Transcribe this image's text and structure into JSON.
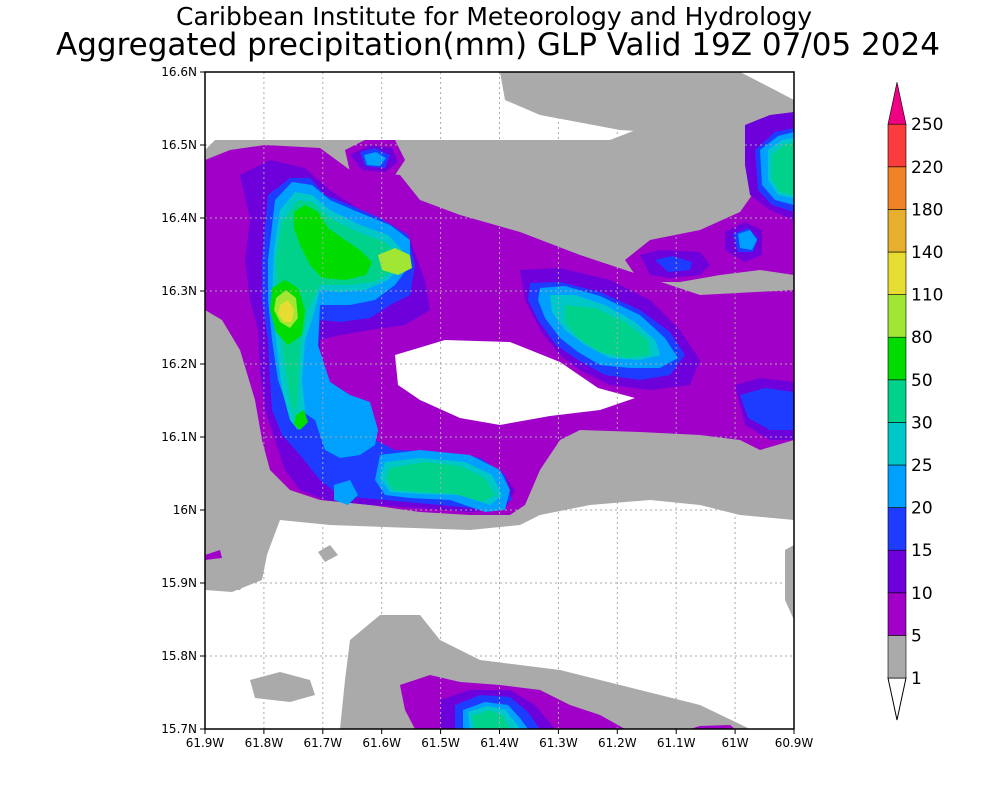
{
  "header": {
    "title": "Caribbean Institute for Meteorology and Hydrology",
    "subtitle": "Aggregated precipitation(mm) GLP Valid 19Z 07/05 2024"
  },
  "map": {
    "x_ticks": [
      "61.9W",
      "61.8W",
      "61.7W",
      "61.6W",
      "61.5W",
      "61.4W",
      "61.3W",
      "61.2W",
      "61.1W",
      "61W",
      "60.9W"
    ],
    "y_ticks": [
      "16.6N",
      "16.5N",
      "16.4N",
      "16.3N",
      "16.2N",
      "16.1N",
      "16N",
      "15.9N",
      "15.8N",
      "15.7N"
    ],
    "lon_range": [
      -61.9,
      -60.9
    ],
    "lat_range": [
      15.7,
      16.6
    ]
  },
  "colorbar": {
    "levels": [
      "1",
      "5",
      "10",
      "15",
      "20",
      "25",
      "30",
      "50",
      "80",
      "110",
      "140",
      "180",
      "220",
      "250"
    ],
    "colors": [
      "#aaaaaa",
      "#a000c8",
      "#6e00dc",
      "#1e3cff",
      "#00a0ff",
      "#00c8c8",
      "#00d28c",
      "#00dc00",
      "#a0e632",
      "#e6dc32",
      "#e6af2d",
      "#f08228",
      "#fa3c3c",
      "#f00082"
    ]
  }
}
